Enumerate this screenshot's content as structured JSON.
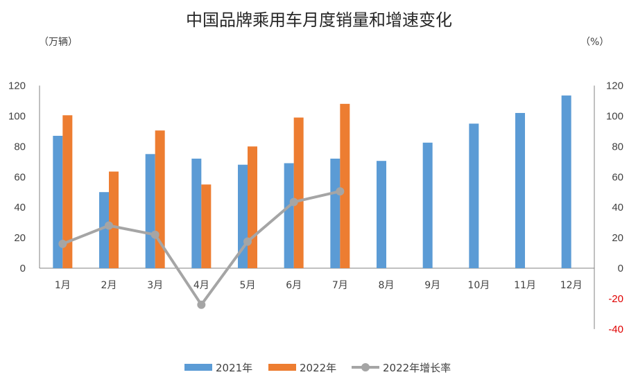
{
  "chart": {
    "title": "中国品牌乘用车月度销量和增速变化",
    "left_unit": "（万辆）",
    "right_unit": "（%）",
    "colors": {
      "s2021": "#5b9bd5",
      "s2022": "#ed7d31",
      "growth": "#a5a5a5",
      "axis": "#808080",
      "negative_tick": "#e00000"
    },
    "legend": {
      "s2021": "2021年",
      "s2022": "2022年",
      "growth": "2022年增长率"
    }
  },
  "chart_data": {
    "type": "bar",
    "categories": [
      "1月",
      "2月",
      "3月",
      "4月",
      "5月",
      "6月",
      "7月",
      "8月",
      "9月",
      "10月",
      "11月",
      "12月"
    ],
    "series": [
      {
        "name": "2021年",
        "type": "bar",
        "axis": "left",
        "values": [
          87,
          50,
          75,
          72,
          68,
          69,
          72,
          70.5,
          82.5,
          95,
          102,
          113.5
        ]
      },
      {
        "name": "2022年",
        "type": "bar",
        "axis": "left",
        "values": [
          100.5,
          63.5,
          90.5,
          55,
          80,
          99,
          108,
          null,
          null,
          null,
          null,
          null
        ]
      },
      {
        "name": "2022年增长率",
        "type": "line",
        "axis": "right",
        "values": [
          16,
          28,
          22,
          -24,
          17.5,
          43.5,
          50.5,
          null,
          null,
          null,
          null,
          null
        ]
      }
    ],
    "y_left": {
      "label": "（万辆）",
      "min": 0,
      "max": 120,
      "ticks": [
        0,
        20,
        40,
        60,
        80,
        100,
        120
      ]
    },
    "y_right": {
      "label": "（%）",
      "min": -40,
      "max": 120,
      "ticks": [
        -40,
        -20,
        0,
        20,
        40,
        60,
        80,
        100,
        120
      ]
    },
    "legend_position": "bottom"
  }
}
